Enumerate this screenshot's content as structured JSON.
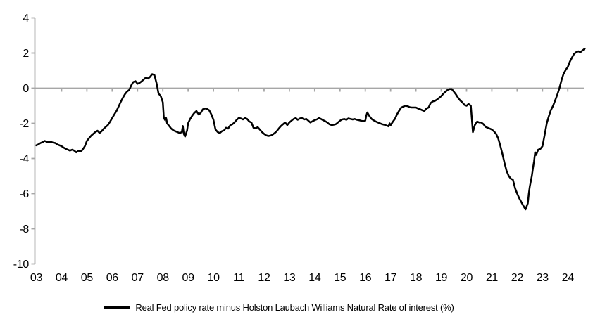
{
  "chart_data": {
    "type": "line",
    "title": "",
    "xlabel": "",
    "ylabel": "",
    "ylim": [
      -10,
      4
    ],
    "yticks": [
      4,
      2,
      0,
      -2,
      -4,
      -6,
      -8,
      -10
    ],
    "xtick_labels": [
      "03",
      "04",
      "05",
      "06",
      "07",
      "08",
      "09",
      "10",
      "11",
      "12",
      "13",
      "14",
      "15",
      "16",
      "17",
      "18",
      "19",
      "20",
      "21",
      "22",
      "23",
      "24"
    ],
    "xtick_years": [
      2003,
      2004,
      2005,
      2006,
      2007,
      2008,
      2009,
      2010,
      2011,
      2012,
      2013,
      2014,
      2015,
      2016,
      2017,
      2018,
      2019,
      2020,
      2021,
      2022,
      2023,
      2024
    ],
    "grid": "zero-line-only",
    "legend_position": "bottom-center",
    "axis_color": "#a6a6a6",
    "text_color": "#000000",
    "series": [
      {
        "name": "Real Fed policy rate minus Holston Laubach Williams Natural Rate of interest (%)",
        "color": "#000000",
        "x": [
          2003.0,
          2003.08,
          2003.17,
          2003.25,
          2003.33,
          2003.42,
          2003.5,
          2003.58,
          2003.67,
          2003.75,
          2003.83,
          2003.92,
          2004.0,
          2004.08,
          2004.17,
          2004.25,
          2004.33,
          2004.42,
          2004.5,
          2004.58,
          2004.67,
          2004.75,
          2004.83,
          2004.92,
          2005.0,
          2005.08,
          2005.17,
          2005.25,
          2005.33,
          2005.42,
          2005.5,
          2005.58,
          2005.67,
          2005.75,
          2005.83,
          2005.92,
          2006.0,
          2006.08,
          2006.17,
          2006.25,
          2006.33,
          2006.42,
          2006.5,
          2006.58,
          2006.67,
          2006.75,
          2006.83,
          2006.92,
          2007.0,
          2007.08,
          2007.17,
          2007.25,
          2007.33,
          2007.42,
          2007.5,
          2007.58,
          2007.67,
          2007.75,
          2007.83,
          2007.92,
          2008.0,
          2008.04,
          2008.08,
          2008.13,
          2008.17,
          2008.25,
          2008.33,
          2008.42,
          2008.5,
          2008.58,
          2008.67,
          2008.75,
          2008.79,
          2008.83,
          2008.88,
          2008.96,
          2009.0,
          2009.08,
          2009.17,
          2009.25,
          2009.33,
          2009.42,
          2009.5,
          2009.58,
          2009.67,
          2009.75,
          2009.83,
          2009.92,
          2010.0,
          2010.08,
          2010.17,
          2010.25,
          2010.33,
          2010.42,
          2010.5,
          2010.58,
          2010.67,
          2010.75,
          2010.83,
          2010.92,
          2011.0,
          2011.08,
          2011.17,
          2011.25,
          2011.33,
          2011.42,
          2011.5,
          2011.58,
          2011.67,
          2011.75,
          2011.83,
          2011.92,
          2012.0,
          2012.08,
          2012.17,
          2012.25,
          2012.33,
          2012.42,
          2012.5,
          2012.58,
          2012.67,
          2012.75,
          2012.83,
          2012.92,
          2013.0,
          2013.08,
          2013.17,
          2013.25,
          2013.33,
          2013.42,
          2013.5,
          2013.58,
          2013.67,
          2013.75,
          2013.83,
          2013.92,
          2014.0,
          2014.08,
          2014.17,
          2014.25,
          2014.33,
          2014.42,
          2014.5,
          2014.58,
          2014.67,
          2014.75,
          2014.83,
          2014.92,
          2015.0,
          2015.08,
          2015.17,
          2015.25,
          2015.33,
          2015.42,
          2015.5,
          2015.58,
          2015.67,
          2015.75,
          2015.83,
          2015.92,
          2016.0,
          2016.04,
          2016.08,
          2016.17,
          2016.25,
          2016.33,
          2016.42,
          2016.5,
          2016.58,
          2016.67,
          2016.75,
          2016.83,
          2016.92,
          2016.96,
          2017.0,
          2017.08,
          2017.17,
          2017.25,
          2017.33,
          2017.42,
          2017.5,
          2017.58,
          2017.67,
          2017.75,
          2017.83,
          2017.92,
          2018.0,
          2018.08,
          2018.17,
          2018.25,
          2018.33,
          2018.42,
          2018.5,
          2018.58,
          2018.67,
          2018.75,
          2018.83,
          2018.92,
          2019.0,
          2019.08,
          2019.17,
          2019.25,
          2019.33,
          2019.42,
          2019.5,
          2019.58,
          2019.67,
          2019.75,
          2019.83,
          2019.92,
          2020.0,
          2020.08,
          2020.17,
          2020.25,
          2020.33,
          2020.42,
          2020.5,
          2020.58,
          2020.67,
          2020.75,
          2020.83,
          2020.92,
          2021.0,
          2021.08,
          2021.17,
          2021.25,
          2021.33,
          2021.42,
          2021.5,
          2021.58,
          2021.67,
          2021.75,
          2021.83,
          2021.92,
          2022.0,
          2022.08,
          2022.17,
          2022.25,
          2022.33,
          2022.42,
          2022.46,
          2022.5,
          2022.58,
          2022.63,
          2022.67,
          2022.71,
          2022.75,
          2022.83,
          2022.92,
          2023.0,
          2023.08,
          2023.17,
          2023.25,
          2023.33,
          2023.42,
          2023.5,
          2023.58,
          2023.67,
          2023.75,
          2023.83,
          2023.92,
          2024.0,
          2024.08,
          2024.17,
          2024.25,
          2024.33,
          2024.42,
          2024.5,
          2024.58,
          2024.67
        ],
        "y": [
          -3.25,
          -3.2,
          -3.12,
          -3.07,
          -3.0,
          -3.05,
          -3.08,
          -3.05,
          -3.1,
          -3.12,
          -3.2,
          -3.25,
          -3.3,
          -3.38,
          -3.45,
          -3.5,
          -3.55,
          -3.5,
          -3.55,
          -3.65,
          -3.55,
          -3.6,
          -3.5,
          -3.3,
          -3.0,
          -2.85,
          -2.7,
          -2.6,
          -2.5,
          -2.42,
          -2.55,
          -2.45,
          -2.3,
          -2.2,
          -2.1,
          -1.9,
          -1.7,
          -1.5,
          -1.3,
          -1.05,
          -0.8,
          -0.55,
          -0.35,
          -0.2,
          -0.1,
          0.15,
          0.35,
          0.4,
          0.25,
          0.3,
          0.4,
          0.5,
          0.6,
          0.55,
          0.65,
          0.8,
          0.75,
          0.3,
          -0.3,
          -0.45,
          -0.8,
          -1.65,
          -1.8,
          -1.7,
          -2.0,
          -2.15,
          -2.3,
          -2.4,
          -2.45,
          -2.5,
          -2.55,
          -2.5,
          -2.15,
          -2.6,
          -2.75,
          -2.4,
          -2.0,
          -1.75,
          -1.55,
          -1.4,
          -1.3,
          -1.5,
          -1.4,
          -1.2,
          -1.15,
          -1.18,
          -1.25,
          -1.5,
          -1.8,
          -2.35,
          -2.5,
          -2.55,
          -2.45,
          -2.4,
          -2.25,
          -2.3,
          -2.1,
          -2.05,
          -1.95,
          -1.8,
          -1.7,
          -1.72,
          -1.78,
          -1.7,
          -1.75,
          -1.9,
          -1.95,
          -2.25,
          -2.28,
          -2.22,
          -2.35,
          -2.5,
          -2.6,
          -2.68,
          -2.72,
          -2.7,
          -2.65,
          -2.55,
          -2.45,
          -2.3,
          -2.15,
          -2.05,
          -1.95,
          -2.1,
          -1.95,
          -1.85,
          -1.75,
          -1.7,
          -1.8,
          -1.72,
          -1.7,
          -1.78,
          -1.75,
          -1.85,
          -1.95,
          -1.88,
          -1.82,
          -1.78,
          -1.7,
          -1.75,
          -1.82,
          -1.88,
          -1.95,
          -2.05,
          -2.1,
          -2.08,
          -2.05,
          -1.95,
          -1.85,
          -1.78,
          -1.75,
          -1.8,
          -1.72,
          -1.75,
          -1.78,
          -1.75,
          -1.8,
          -1.82,
          -1.85,
          -1.88,
          -1.85,
          -1.55,
          -1.38,
          -1.6,
          -1.75,
          -1.83,
          -1.9,
          -1.95,
          -2.0,
          -2.05,
          -2.08,
          -2.12,
          -2.17,
          -2.0,
          -2.1,
          -1.93,
          -1.75,
          -1.5,
          -1.3,
          -1.1,
          -1.05,
          -1.0,
          -1.02,
          -1.08,
          -1.1,
          -1.1,
          -1.1,
          -1.15,
          -1.2,
          -1.25,
          -1.3,
          -1.15,
          -1.1,
          -0.85,
          -0.75,
          -0.72,
          -0.65,
          -0.55,
          -0.45,
          -0.32,
          -0.2,
          -0.1,
          -0.05,
          -0.05,
          -0.2,
          -0.35,
          -0.55,
          -0.7,
          -0.8,
          -0.95,
          -1.0,
          -0.9,
          -1.0,
          -2.5,
          -2.1,
          -1.9,
          -1.95,
          -1.95,
          -2.05,
          -2.2,
          -2.25,
          -2.3,
          -2.35,
          -2.45,
          -2.6,
          -2.85,
          -3.25,
          -3.75,
          -4.25,
          -4.7,
          -5.0,
          -5.15,
          -5.2,
          -5.7,
          -6.0,
          -6.25,
          -6.5,
          -6.7,
          -6.9,
          -6.55,
          -6.0,
          -5.6,
          -5.0,
          -4.5,
          -4.15,
          -3.65,
          -3.8,
          -3.5,
          -3.45,
          -3.3,
          -2.7,
          -2.0,
          -1.6,
          -1.25,
          -1.0,
          -0.7,
          -0.4,
          0.0,
          0.45,
          0.8,
          1.05,
          1.2,
          1.5,
          1.75,
          1.95,
          2.05,
          2.1,
          2.05,
          2.15,
          2.25
        ]
      }
    ]
  }
}
